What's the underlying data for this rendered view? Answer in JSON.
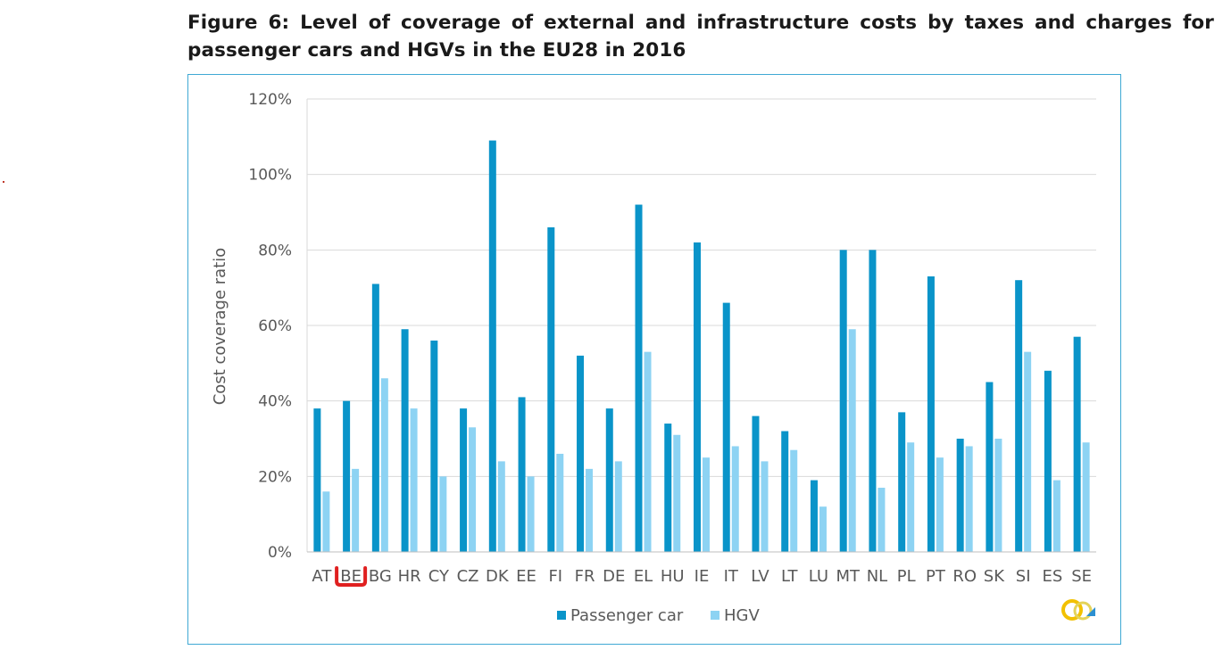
{
  "figure": {
    "title": "Figure 6: Level of coverage of external and infrastructure costs by taxes and charges for passenger cars and HGVs in the EU28 in 2016"
  },
  "colors": {
    "passenger_car": "#0a94c9",
    "hgv": "#8dd3f3",
    "gridline": "#d9d9d9",
    "frame": "#3fa9d4",
    "highlight": "#e02020"
  },
  "chart_data": {
    "type": "bar",
    "title": "",
    "xlabel": "",
    "ylabel": "Cost coverage ratio",
    "ylim": [
      0,
      120
    ],
    "yticks": [
      "0%",
      "20%",
      "40%",
      "60%",
      "80%",
      "100%",
      "120%"
    ],
    "grid": true,
    "legend_position": "bottom",
    "categories": [
      "AT",
      "BE",
      "BG",
      "HR",
      "CY",
      "CZ",
      "DK",
      "EE",
      "FI",
      "FR",
      "DE",
      "EL",
      "HU",
      "IE",
      "IT",
      "LV",
      "LT",
      "LU",
      "MT",
      "NL",
      "PL",
      "PT",
      "RO",
      "SK",
      "SI",
      "ES",
      "SE"
    ],
    "highlighted_category": "BE",
    "series": [
      {
        "name": "Passenger car",
        "values": [
          38,
          40,
          71,
          59,
          56,
          38,
          109,
          41,
          86,
          52,
          38,
          92,
          34,
          82,
          66,
          36,
          32,
          19,
          80,
          80,
          37,
          73,
          30,
          45,
          72,
          48,
          57
        ]
      },
      {
        "name": "HGV",
        "values": [
          16,
          22,
          46,
          38,
          20,
          33,
          24,
          20,
          26,
          22,
          24,
          53,
          31,
          25,
          28,
          24,
          27,
          12,
          59,
          17,
          29,
          25,
          28,
          30,
          53,
          19,
          29
        ]
      }
    ]
  }
}
